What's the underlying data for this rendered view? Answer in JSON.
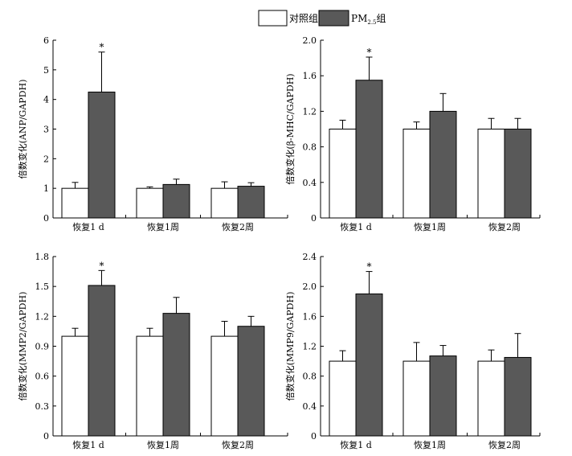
{
  "legend": {
    "control_label": "对照组",
    "pm_label_main": "PM",
    "pm_label_sub": "2.5",
    "pm_label_suffix": "组",
    "control_color": "#ffffff",
    "pm_color": "#595959"
  },
  "chart_data": [
    {
      "type": "bar",
      "ylabel": "倍数变化(ANP/GAPDH)",
      "categories": [
        "恢复1 d",
        "恢复1周",
        "恢复2周"
      ],
      "ylim": [
        0,
        6
      ],
      "yticks": [
        0,
        1,
        2,
        3,
        4,
        5,
        6
      ],
      "tick_labels": [
        "0",
        "1",
        "2",
        "3",
        "4",
        "5",
        "6"
      ],
      "series": [
        {
          "name": "对照组",
          "values": [
            1.0,
            1.0,
            1.0
          ],
          "errors": [
            0.2,
            0.05,
            0.22
          ]
        },
        {
          "name": "PM2.5组",
          "values": [
            4.25,
            1.13,
            1.07
          ],
          "errors": [
            1.35,
            0.18,
            0.12
          ]
        }
      ],
      "annotations": [
        {
          "category": 0,
          "series": 1,
          "text": "*"
        }
      ]
    },
    {
      "type": "bar",
      "ylabel": "倍数变化(β-MHC/GAPDH)",
      "categories": [
        "恢复1 d",
        "恢复1周",
        "恢复2周"
      ],
      "ylim": [
        0,
        2.0
      ],
      "yticks": [
        0,
        0.4,
        0.8,
        1.2,
        1.6,
        2.0
      ],
      "tick_labels": [
        "0",
        "0.4",
        "0.8",
        "1.2",
        "1.6",
        "2.0"
      ],
      "series": [
        {
          "name": "对照组",
          "values": [
            1.0,
            1.0,
            1.0
          ],
          "errors": [
            0.1,
            0.08,
            0.12
          ]
        },
        {
          "name": "PM2.5组",
          "values": [
            1.55,
            1.2,
            1.0
          ],
          "errors": [
            0.26,
            0.2,
            0.12
          ]
        }
      ],
      "annotations": [
        {
          "category": 0,
          "series": 1,
          "text": "*"
        }
      ]
    },
    {
      "type": "bar",
      "ylabel": "倍数变化(MMP2/GAPDH)",
      "categories": [
        "恢复1 d",
        "恢复1周",
        "恢复2周"
      ],
      "ylim": [
        0,
        1.8
      ],
      "yticks": [
        0,
        0.3,
        0.6,
        0.9,
        1.2,
        1.5,
        1.8
      ],
      "tick_labels": [
        "0",
        "0.3",
        "0.6",
        "0.9",
        "1.2",
        "1.5",
        "1.8"
      ],
      "series": [
        {
          "name": "对照组",
          "values": [
            1.0,
            1.0,
            1.0
          ],
          "errors": [
            0.08,
            0.08,
            0.15
          ]
        },
        {
          "name": "PM2.5组",
          "values": [
            1.51,
            1.23,
            1.1
          ],
          "errors": [
            0.15,
            0.16,
            0.1
          ]
        }
      ],
      "annotations": [
        {
          "category": 0,
          "series": 1,
          "text": "*"
        }
      ]
    },
    {
      "type": "bar",
      "ylabel": "倍数变化(MMP9/GAPDH)",
      "categories": [
        "恢复1 d",
        "恢复1周",
        "恢复2周"
      ],
      "ylim": [
        0,
        2.4
      ],
      "yticks": [
        0,
        0.4,
        0.8,
        1.2,
        1.6,
        2.0,
        2.4
      ],
      "tick_labels": [
        "0",
        "0.4",
        "0.8",
        "1.2",
        "1.6",
        "2.0",
        "2.4"
      ],
      "series": [
        {
          "name": "对照组",
          "values": [
            1.0,
            1.0,
            1.0
          ],
          "errors": [
            0.14,
            0.25,
            0.15
          ]
        },
        {
          "name": "PM2.5组",
          "values": [
            1.9,
            1.07,
            1.05
          ],
          "errors": [
            0.3,
            0.14,
            0.32
          ]
        }
      ],
      "annotations": [
        {
          "category": 0,
          "series": 1,
          "text": "*"
        }
      ]
    }
  ]
}
